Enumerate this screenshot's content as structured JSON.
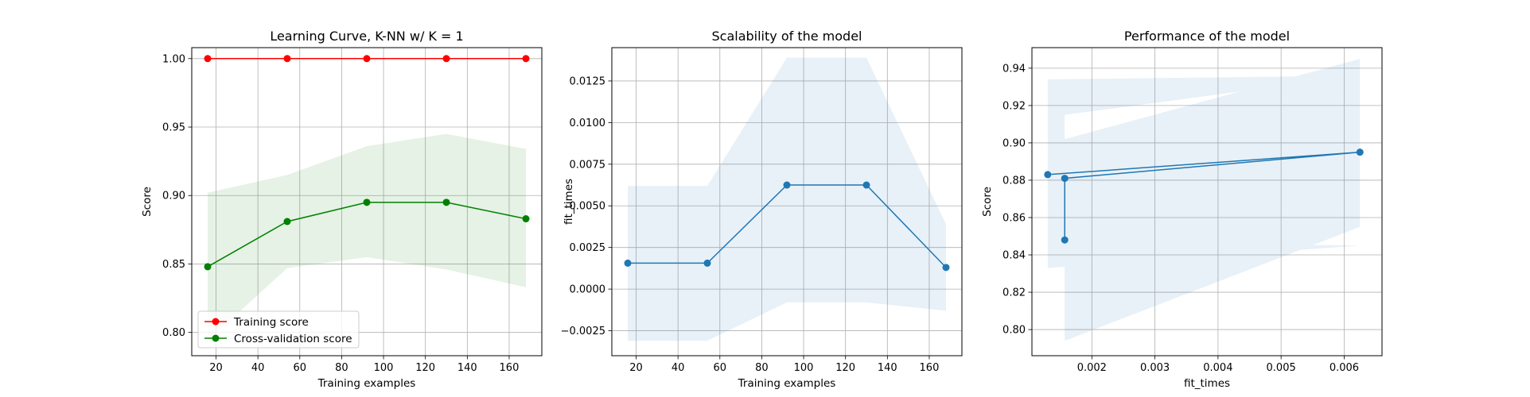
{
  "chart_data": [
    {
      "type": "line",
      "title": "Learning Curve, K-NN w/ K = 1",
      "xlabel": "Training examples",
      "ylabel": "Score",
      "xlim": [
        8.4,
        175.6
      ],
      "ylim": [
        0.783,
        1.008
      ],
      "xticks": [
        20,
        40,
        60,
        80,
        100,
        120,
        140,
        160
      ],
      "yticks": [
        0.8,
        0.85,
        0.9,
        0.95,
        1.0
      ],
      "ytick_labels": [
        "0.80",
        "0.85",
        "0.90",
        "0.95",
        "1.00"
      ],
      "grid": true,
      "legend": "lower-left",
      "x": [
        16,
        54,
        92,
        130,
        168
      ],
      "series": [
        {
          "name": "Training score",
          "color": "#ff0000",
          "values": [
            1.0,
            1.0,
            1.0,
            1.0,
            1.0
          ],
          "band": [
            [
              1.0,
              1.0,
              1.0,
              1.0,
              1.0
            ],
            [
              1.0,
              1.0,
              1.0,
              1.0,
              1.0
            ]
          ]
        },
        {
          "name": "Cross-validation score",
          "color": "#008000",
          "values": [
            0.848,
            0.881,
            0.895,
            0.895,
            0.883
          ],
          "band": [
            [
              0.794,
              0.847,
              0.855,
              0.846,
              0.833
            ],
            [
              0.902,
              0.915,
              0.936,
              0.945,
              0.934
            ]
          ]
        }
      ]
    },
    {
      "type": "line",
      "title": "Scalability of the model",
      "xlabel": "Training examples",
      "ylabel": "fit_times",
      "xlim": [
        8.4,
        175.6
      ],
      "ylim": [
        -0.004,
        0.0145
      ],
      "xticks": [
        20,
        40,
        60,
        80,
        100,
        120,
        140,
        160
      ],
      "yticks": [
        -0.0025,
        0.0,
        0.0025,
        0.005,
        0.0075,
        0.01,
        0.0125
      ],
      "ytick_labels": [
        "−0.0025",
        "0.0000",
        "0.0025",
        "0.0050",
        "0.0075",
        "0.0100",
        "0.0125"
      ],
      "grid": true,
      "x": [
        16,
        54,
        92,
        130,
        168
      ],
      "series": [
        {
          "name": "",
          "color": "#1f77b4",
          "values": [
            0.00156,
            0.00156,
            0.00625,
            0.00625,
            0.0013
          ],
          "band": [
            [
              -0.0031,
              -0.0031,
              -0.0008,
              -0.0008,
              -0.0013
            ],
            [
              0.0062,
              0.0062,
              0.0139,
              0.0139,
              0.0039
            ]
          ]
        }
      ]
    },
    {
      "type": "line",
      "title": "Performance of the model",
      "xlabel": "fit_times",
      "ylabel": "Score",
      "xlim": [
        0.00105,
        0.0066
      ],
      "ylim": [
        0.786,
        0.951
      ],
      "xticks": [
        0.002,
        0.003,
        0.004,
        0.005,
        0.006
      ],
      "yticks": [
        0.8,
        0.82,
        0.84,
        0.86,
        0.88,
        0.9,
        0.92,
        0.94
      ],
      "ytick_labels": [
        "0.80",
        "0.82",
        "0.84",
        "0.86",
        "0.88",
        "0.90",
        "0.92",
        "0.94"
      ],
      "grid": true,
      "series": [
        {
          "name": "",
          "color": "#1f77b4",
          "points": [
            [
              0.0013,
              0.883
            ],
            [
              0.00625,
              0.895
            ],
            [
              0.00157,
              0.881
            ],
            [
              0.00157,
              0.848
            ]
          ],
          "band_points": [
            [
              0.0013,
              0.833,
              0.934
            ],
            [
              0.00625,
              0.845,
              0.936
            ],
            [
              0.00157,
              0.847,
              0.915
            ],
            [
              0.00157,
              0.794,
              0.902
            ],
            [
              0.00625,
              0.855,
              0.945
            ]
          ]
        }
      ]
    }
  ]
}
